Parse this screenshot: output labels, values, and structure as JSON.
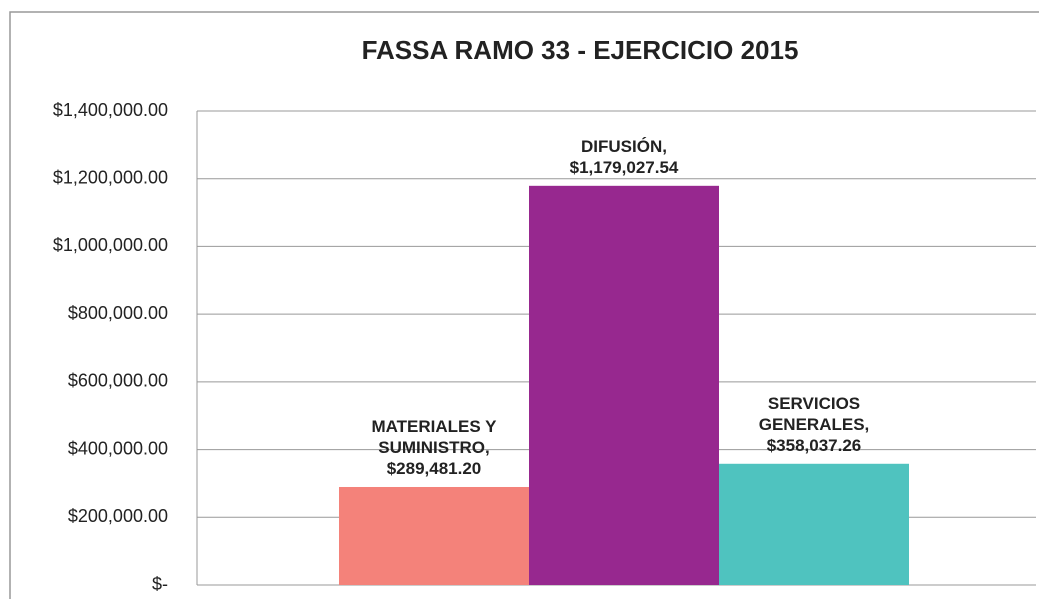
{
  "chart_data": {
    "type": "bar",
    "title": "FASSA RAMO 33  - EJERCICIO 2015",
    "categories": [
      "MATERIALES Y SUMINISTRO,",
      "DIFUSIÓN,",
      "SERVICIOS GENERALES,"
    ],
    "values": [
      289481.2,
      1179027.54,
      358037.26
    ],
    "value_labels": [
      "$289,481.20",
      "$1,179,027.54",
      "$358,037.26"
    ],
    "colors": [
      "#f4827a",
      "#97288f",
      "#4fc3bf"
    ],
    "ylim": [
      0,
      1400000
    ],
    "yticks": [
      {
        "value": 0,
        "label": "$-"
      },
      {
        "value": 200000,
        "label": "$200,000.00"
      },
      {
        "value": 400000,
        "label": "$400,000.00"
      },
      {
        "value": 600000,
        "label": "$600,000.00"
      },
      {
        "value": 800000,
        "label": "$800,000.00"
      },
      {
        "value": 1000000,
        "label": "$1,000,000.00"
      },
      {
        "value": 1200000,
        "label": "$1,200,000.00"
      },
      {
        "value": 1400000,
        "label": "$1,400,000.00"
      }
    ],
    "grid": true
  }
}
